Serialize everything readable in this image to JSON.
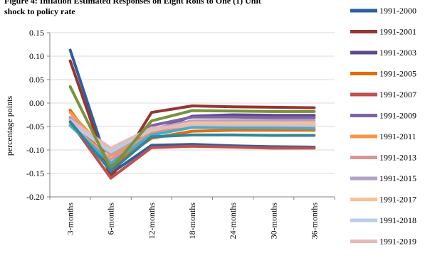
{
  "chart_data": {
    "type": "line",
    "title_line1": "Figure 4: Inflation Estimated Responses on Eight Rolls to One (1) Unit",
    "title_line2": "shock to policy rate",
    "xlabel": "",
    "ylabel": "percentage points",
    "ylim": [
      -0.2,
      0.15
    ],
    "yticks": [
      "0.15",
      "0.10",
      "0.05",
      "0.00",
      "-0.05",
      "-0.10",
      "-0.15",
      "-0.20"
    ],
    "ytick_values": [
      0.15,
      0.1,
      0.05,
      0.0,
      -0.05,
      -0.1,
      -0.15,
      -0.2
    ],
    "categories": [
      "3-months",
      "6-months",
      "12-months",
      "18-months",
      "24-months",
      "30-months",
      "36-months"
    ],
    "grid": "horizontal",
    "legend_position": "right",
    "series": [
      {
        "name": "1991-2000",
        "color": "#2e5f9e",
        "values": [
          0.113,
          -0.15,
          -0.09,
          -0.088,
          -0.091,
          -0.093,
          -0.094
        ]
      },
      {
        "name": "1991-2001",
        "color": "#943634",
        "values": [
          0.09,
          -0.16,
          -0.02,
          -0.006,
          -0.008,
          -0.009,
          -0.01
        ]
      },
      {
        "name": "1991-2003",
        "color": "#5f4a8b",
        "values": [
          -0.03,
          -0.145,
          -0.06,
          -0.028,
          -0.025,
          -0.026,
          -0.026
        ]
      },
      {
        "name": "1991-2005",
        "color": "#e46c0a",
        "values": [
          -0.015,
          -0.135,
          -0.075,
          -0.06,
          -0.058,
          -0.058,
          -0.058
        ]
      },
      {
        "name": "1991-2007",
        "color": "#c0504d",
        "values": [
          -0.04,
          -0.16,
          -0.095,
          -0.092,
          -0.094,
          -0.096,
          -0.096
        ]
      },
      {
        "name": "1991-2009",
        "color": "#8064a2",
        "values": [
          -0.035,
          -0.13,
          -0.048,
          -0.03,
          -0.03,
          -0.031,
          -0.031
        ]
      },
      {
        "name": "1991-2011",
        "color": "#f79646",
        "values": [
          -0.02,
          -0.112,
          -0.065,
          -0.05,
          -0.05,
          -0.05,
          -0.05
        ]
      },
      {
        "name": "1991-2013",
        "color": "#d99694",
        "values": [
          -0.045,
          -0.12,
          -0.062,
          -0.045,
          -0.044,
          -0.044,
          -0.044
        ]
      },
      {
        "name": "1991-2015",
        "color": "#b2a1c7",
        "values": [
          -0.03,
          -0.108,
          -0.055,
          -0.038,
          -0.037,
          -0.037,
          -0.037
        ]
      },
      {
        "name": "1991-2017",
        "color": "#fac090",
        "values": [
          -0.04,
          -0.1,
          -0.058,
          -0.042,
          -0.042,
          -0.042,
          -0.042
        ]
      },
      {
        "name": "1991-2018",
        "color": "#b9cde5",
        "values": [
          -0.042,
          -0.104,
          -0.055,
          -0.047,
          -0.047,
          -0.047,
          -0.047
        ]
      },
      {
        "name": "1991-2019",
        "color": "#e6b9b8",
        "values": [
          -0.036,
          -0.096,
          -0.053,
          -0.049,
          -0.049,
          -0.049,
          -0.049
        ]
      },
      {
        "name": "",
        "color": "#4bacc6",
        "values": [
          -0.048,
          -0.128,
          -0.068,
          -0.052,
          -0.053,
          -0.053,
          -0.054
        ]
      },
      {
        "name": "",
        "color": "#77933c",
        "values": [
          0.035,
          -0.14,
          -0.038,
          -0.016,
          -0.017,
          -0.018,
          -0.018
        ]
      },
      {
        "name": "",
        "color": "#31859c",
        "values": [
          -0.04,
          -0.145,
          -0.072,
          -0.068,
          -0.068,
          -0.069,
          -0.069
        ]
      }
    ]
  }
}
